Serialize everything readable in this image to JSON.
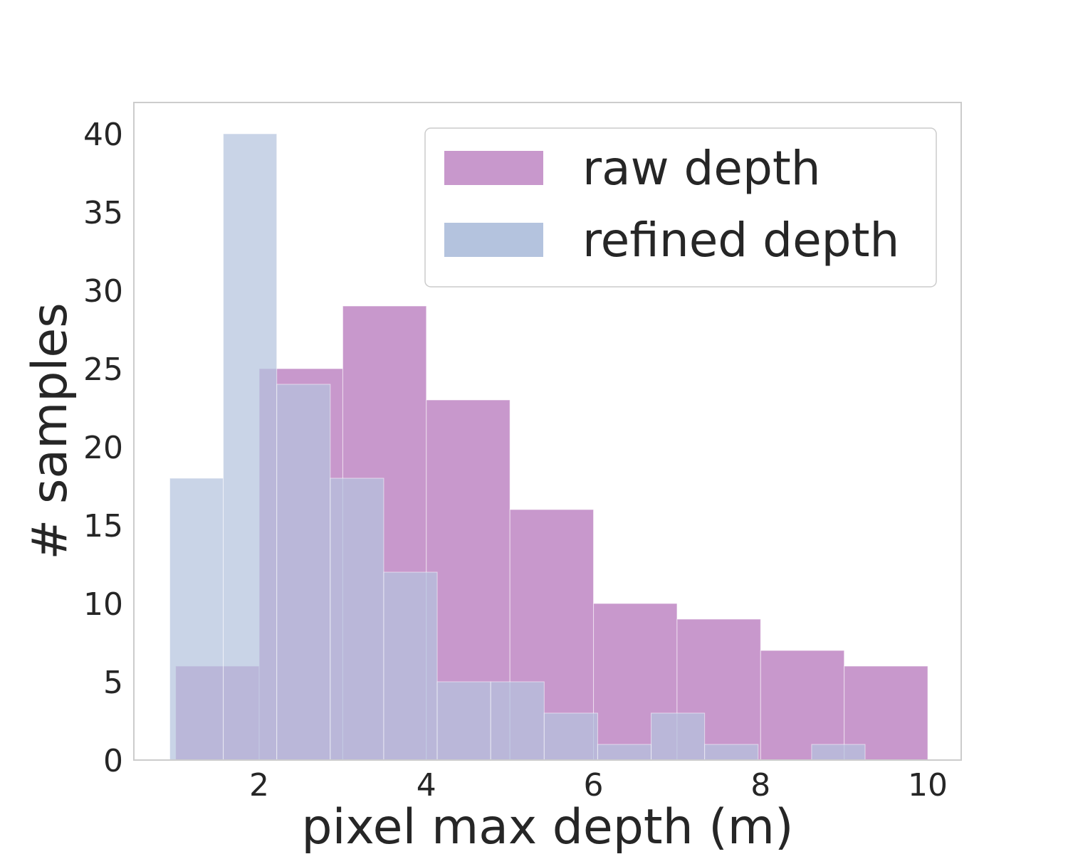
{
  "chart_data": {
    "type": "bar",
    "subtype": "overlapping-histogram",
    "title": "",
    "xlabel": "pixel max depth (m)",
    "ylabel": "# samples",
    "xlim": [
      0.5,
      10.4
    ],
    "ylim": [
      0,
      42
    ],
    "x_ticks": [
      2,
      4,
      6,
      8,
      10
    ],
    "x_tick_labels": [
      "2",
      "4",
      "6",
      "8",
      "10"
    ],
    "y_ticks": [
      0,
      5,
      10,
      15,
      20,
      25,
      30,
      35,
      40
    ],
    "y_tick_labels": [
      "0",
      "5",
      "10",
      "15",
      "20",
      "25",
      "30",
      "35",
      "40"
    ],
    "grid": false,
    "legend_position": "top-right",
    "series": [
      {
        "name": "raw depth",
        "color": "#c898cc",
        "bin_edges": [
          1.0,
          2.0,
          3.0,
          4.0,
          5.0,
          6.0,
          7.0,
          8.0,
          9.0,
          10.0
        ],
        "counts": [
          6,
          25,
          29,
          23,
          16,
          10,
          9,
          7,
          6
        ]
      },
      {
        "name": "refined depth",
        "color": "#b4c3de",
        "bin_edges": [
          0.93,
          1.57,
          2.21,
          2.85,
          3.49,
          4.13,
          4.77,
          5.41,
          6.05,
          6.69,
          7.33,
          7.97,
          8.61,
          9.25
        ],
        "counts": [
          18,
          40,
          24,
          18,
          12,
          5,
          5,
          3,
          1,
          3,
          1,
          0,
          1
        ]
      }
    ]
  }
}
